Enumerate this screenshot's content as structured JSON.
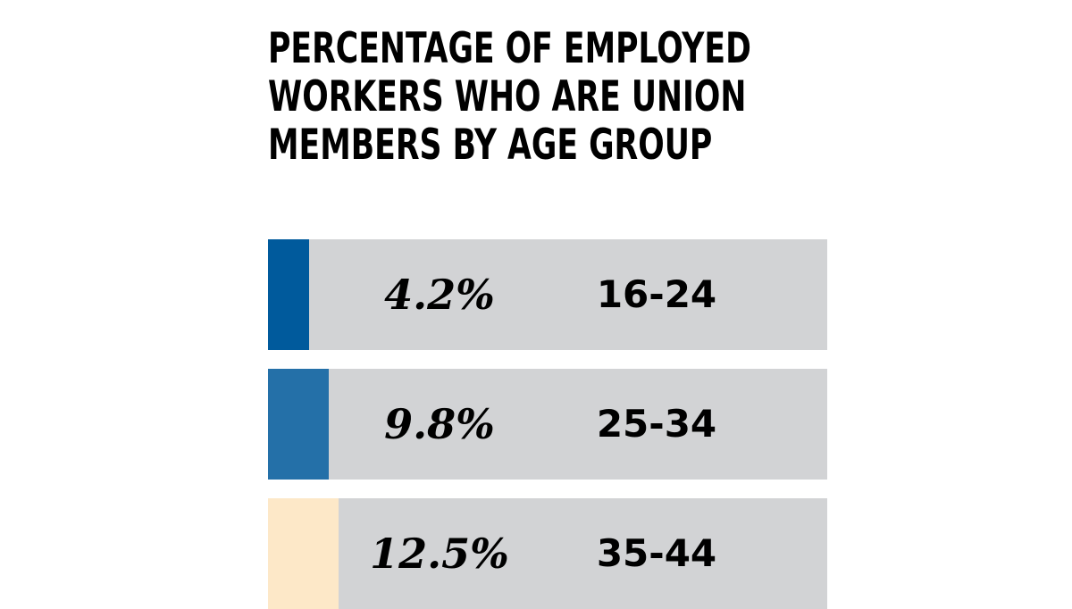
{
  "chart_data": {
    "type": "bar",
    "orientation": "horizontal",
    "title": "PERCENTAGE OF EMPLOYED WORKERS WHO ARE UNION MEMBERS BY AGE GROUP",
    "title_lines": [
      "PERCENTAGE OF EMPLOYED",
      "WORKERS WHO ARE UNION",
      "MEMBERS BY AGE GROUP"
    ],
    "categories": [
      "16-24",
      "25-34",
      "35-44"
    ],
    "values": [
      4.2,
      9.8,
      12.5
    ],
    "data_labels": [
      "4.2%",
      "9.8%",
      "12.5%"
    ],
    "colors": [
      "#005a9c",
      "#2470a8",
      "#fde8c8"
    ],
    "track_color": "#d2d3d5",
    "grid": false,
    "xlabel": "",
    "ylabel": ""
  }
}
